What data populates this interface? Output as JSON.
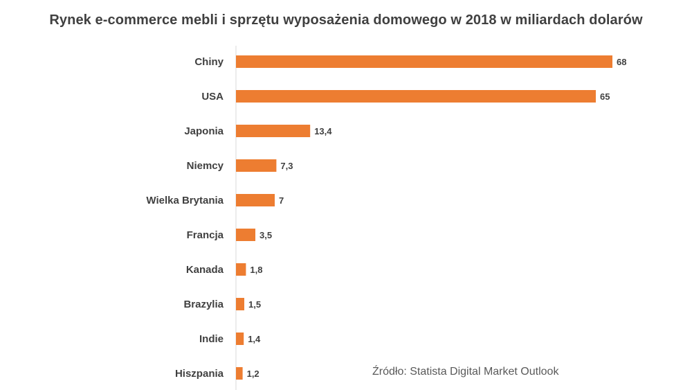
{
  "chart_data": {
    "type": "bar",
    "orientation": "horizontal",
    "title": "Rynek e-commerce mebli i sprzętu wyposażenia domowego w 2018 w miliardach dolarów",
    "categories": [
      "Chiny",
      "USA",
      "Japonia",
      "Niemcy",
      "Wielka Brytania",
      "Francja",
      "Kanada",
      "Brazylia",
      "Indie",
      "Hiszpania"
    ],
    "values": [
      68,
      65,
      13.4,
      7.3,
      7,
      3.5,
      1.8,
      1.5,
      1.4,
      1.2
    ],
    "value_labels": [
      "68",
      "65",
      "13,4",
      "7,3",
      "7",
      "3,5",
      "1,8",
      "1,5",
      "1,4",
      "1,2"
    ],
    "bar_color": "#ED7D31",
    "xlim": [
      0,
      68
    ],
    "grid": false,
    "legend": "none"
  },
  "source": "Źródło: Statista Digital Market Outlook"
}
